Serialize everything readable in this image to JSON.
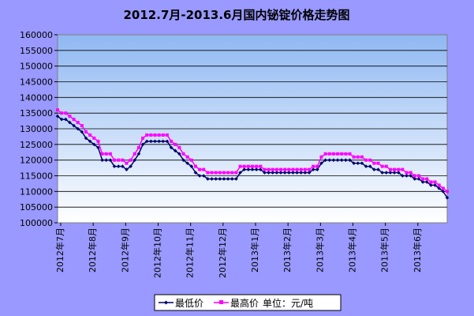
{
  "chart_data": {
    "type": "line",
    "title": "2012.7月-2013.6月国内铋锭价格走势图",
    "ylim": [
      100000,
      160000
    ],
    "ytick_step": 5000,
    "grid": true,
    "legend_position": "bottom",
    "legend_note": "单位：元/吨",
    "x_labels": [
      "2012年7月",
      "2012年8月",
      "2012年9月",
      "2012年10月",
      "2012年11月",
      "2012年12月",
      "2013年1月",
      "2013年2月",
      "2013年3月",
      "2013年4月",
      "2013年5月",
      "2013年6月"
    ],
    "series": [
      {
        "name": "最低价",
        "color": "#000066",
        "values": [
          134000,
          133000,
          133000,
          132000,
          131000,
          130000,
          129000,
          127000,
          126000,
          125000,
          124000,
          120000,
          120000,
          120000,
          118000,
          118000,
          118000,
          117000,
          118000,
          120000,
          122000,
          125000,
          126000,
          126000,
          126000,
          126000,
          126000,
          126000,
          124000,
          123000,
          122000,
          120000,
          119000,
          118000,
          116000,
          115000,
          115000,
          114000,
          114000,
          114000,
          114000,
          114000,
          114000,
          114000,
          114000,
          116000,
          117000,
          117000,
          117000,
          117000,
          117000,
          116000,
          116000,
          116000,
          116000,
          116000,
          116000,
          116000,
          116000,
          116000,
          116000,
          116000,
          116000,
          117000,
          117000,
          119000,
          120000,
          120000,
          120000,
          120000,
          120000,
          120000,
          120000,
          119000,
          119000,
          119000,
          118000,
          118000,
          117000,
          117000,
          116000,
          116000,
          116000,
          116000,
          116000,
          115000,
          115000,
          115000,
          114000,
          114000,
          113000,
          113000,
          112000,
          112000,
          111000,
          110000,
          108000
        ]
      },
      {
        "name": "最高价",
        "color": "#ff00ff",
        "values": [
          136000,
          135000,
          135000,
          134000,
          133000,
          132000,
          131000,
          129000,
          128000,
          127000,
          126000,
          122000,
          122000,
          122000,
          120000,
          120000,
          120000,
          119000,
          120000,
          122000,
          124000,
          127000,
          128000,
          128000,
          128000,
          128000,
          128000,
          128000,
          126000,
          125000,
          124000,
          122000,
          121000,
          120000,
          118000,
          117000,
          117000,
          116000,
          116000,
          116000,
          116000,
          116000,
          116000,
          116000,
          116000,
          118000,
          118000,
          118000,
          118000,
          118000,
          118000,
          117000,
          117000,
          117000,
          117000,
          117000,
          117000,
          117000,
          117000,
          117000,
          117000,
          117000,
          117000,
          118000,
          118000,
          121000,
          122000,
          122000,
          122000,
          122000,
          122000,
          122000,
          122000,
          121000,
          121000,
          121000,
          120000,
          120000,
          119000,
          119000,
          118000,
          118000,
          117000,
          117000,
          117000,
          117000,
          116000,
          116000,
          115000,
          115000,
          114000,
          114000,
          113000,
          113000,
          112000,
          111000,
          110000
        ]
      }
    ]
  }
}
